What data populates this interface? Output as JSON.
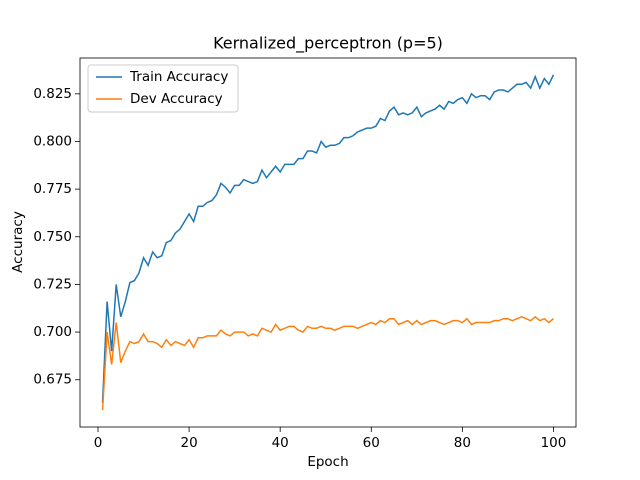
{
  "chart_data": {
    "type": "line",
    "title": "Kernalized_perceptron (p=5)",
    "x_label": "Epoch",
    "y_label": "Accuracy",
    "x": [
      1,
      2,
      3,
      4,
      5,
      6,
      7,
      8,
      9,
      10,
      11,
      12,
      13,
      14,
      15,
      16,
      17,
      18,
      19,
      20,
      21,
      22,
      23,
      24,
      25,
      26,
      27,
      28,
      29,
      30,
      31,
      32,
      33,
      34,
      35,
      36,
      37,
      38,
      39,
      40,
      41,
      42,
      43,
      44,
      45,
      46,
      47,
      48,
      49,
      50,
      51,
      52,
      53,
      54,
      55,
      56,
      57,
      58,
      59,
      60,
      61,
      62,
      63,
      64,
      65,
      66,
      67,
      68,
      69,
      70,
      71,
      72,
      73,
      74,
      75,
      76,
      77,
      78,
      79,
      80,
      81,
      82,
      83,
      84,
      85,
      86,
      87,
      88,
      89,
      90,
      91,
      92,
      93,
      94,
      95,
      96,
      97,
      98,
      99,
      100
    ],
    "series": [
      {
        "name": "Train Accuracy",
        "color": "#1f77b4",
        "values": [
          0.663,
          0.716,
          0.69,
          0.725,
          0.708,
          0.716,
          0.726,
          0.727,
          0.731,
          0.739,
          0.735,
          0.742,
          0.739,
          0.74,
          0.747,
          0.748,
          0.752,
          0.754,
          0.758,
          0.762,
          0.758,
          0.766,
          0.766,
          0.768,
          0.769,
          0.772,
          0.778,
          0.776,
          0.773,
          0.777,
          0.777,
          0.78,
          0.779,
          0.778,
          0.779,
          0.785,
          0.781,
          0.784,
          0.787,
          0.784,
          0.788,
          0.788,
          0.788,
          0.791,
          0.791,
          0.795,
          0.795,
          0.794,
          0.8,
          0.797,
          0.798,
          0.798,
          0.799,
          0.802,
          0.802,
          0.803,
          0.805,
          0.806,
          0.807,
          0.807,
          0.808,
          0.812,
          0.811,
          0.816,
          0.818,
          0.814,
          0.815,
          0.814,
          0.815,
          0.818,
          0.813,
          0.815,
          0.816,
          0.817,
          0.819,
          0.817,
          0.821,
          0.82,
          0.822,
          0.823,
          0.82,
          0.825,
          0.823,
          0.824,
          0.824,
          0.822,
          0.826,
          0.827,
          0.827,
          0.826,
          0.828,
          0.83,
          0.83,
          0.831,
          0.828,
          0.834,
          0.828,
          0.833,
          0.83,
          0.835
        ]
      },
      {
        "name": "Dev Accuracy",
        "color": "#ff7f0e",
        "values": [
          0.659,
          0.7,
          0.683,
          0.705,
          0.684,
          0.69,
          0.695,
          0.694,
          0.695,
          0.699,
          0.695,
          0.695,
          0.694,
          0.692,
          0.696,
          0.693,
          0.695,
          0.694,
          0.693,
          0.696,
          0.692,
          0.697,
          0.697,
          0.698,
          0.698,
          0.698,
          0.701,
          0.699,
          0.698,
          0.7,
          0.7,
          0.7,
          0.698,
          0.699,
          0.698,
          0.702,
          0.701,
          0.7,
          0.704,
          0.701,
          0.702,
          0.703,
          0.703,
          0.701,
          0.7,
          0.703,
          0.702,
          0.702,
          0.703,
          0.702,
          0.702,
          0.701,
          0.702,
          0.703,
          0.703,
          0.703,
          0.702,
          0.703,
          0.704,
          0.705,
          0.704,
          0.706,
          0.705,
          0.707,
          0.707,
          0.704,
          0.705,
          0.706,
          0.704,
          0.706,
          0.704,
          0.705,
          0.706,
          0.706,
          0.705,
          0.704,
          0.705,
          0.706,
          0.706,
          0.705,
          0.707,
          0.704,
          0.705,
          0.705,
          0.705,
          0.705,
          0.706,
          0.706,
          0.707,
          0.707,
          0.706,
          0.707,
          0.708,
          0.707,
          0.706,
          0.708,
          0.706,
          0.707,
          0.705,
          0.707
        ]
      }
    ],
    "xlim": [
      -3.95,
      104.95
    ],
    "xticks": [
      0,
      20,
      40,
      60,
      80,
      100
    ],
    "ylim": [
      0.6502,
      0.8438
    ],
    "yticks": [
      0.675,
      {
        "value": 0.7,
        "label": "0.700"
      },
      0.725,
      {
        "value": 0.75,
        "label": "0.750"
      },
      0.775,
      {
        "value": 0.8,
        "label": "0.800"
      },
      0.825
    ],
    "legend": "upper left"
  }
}
